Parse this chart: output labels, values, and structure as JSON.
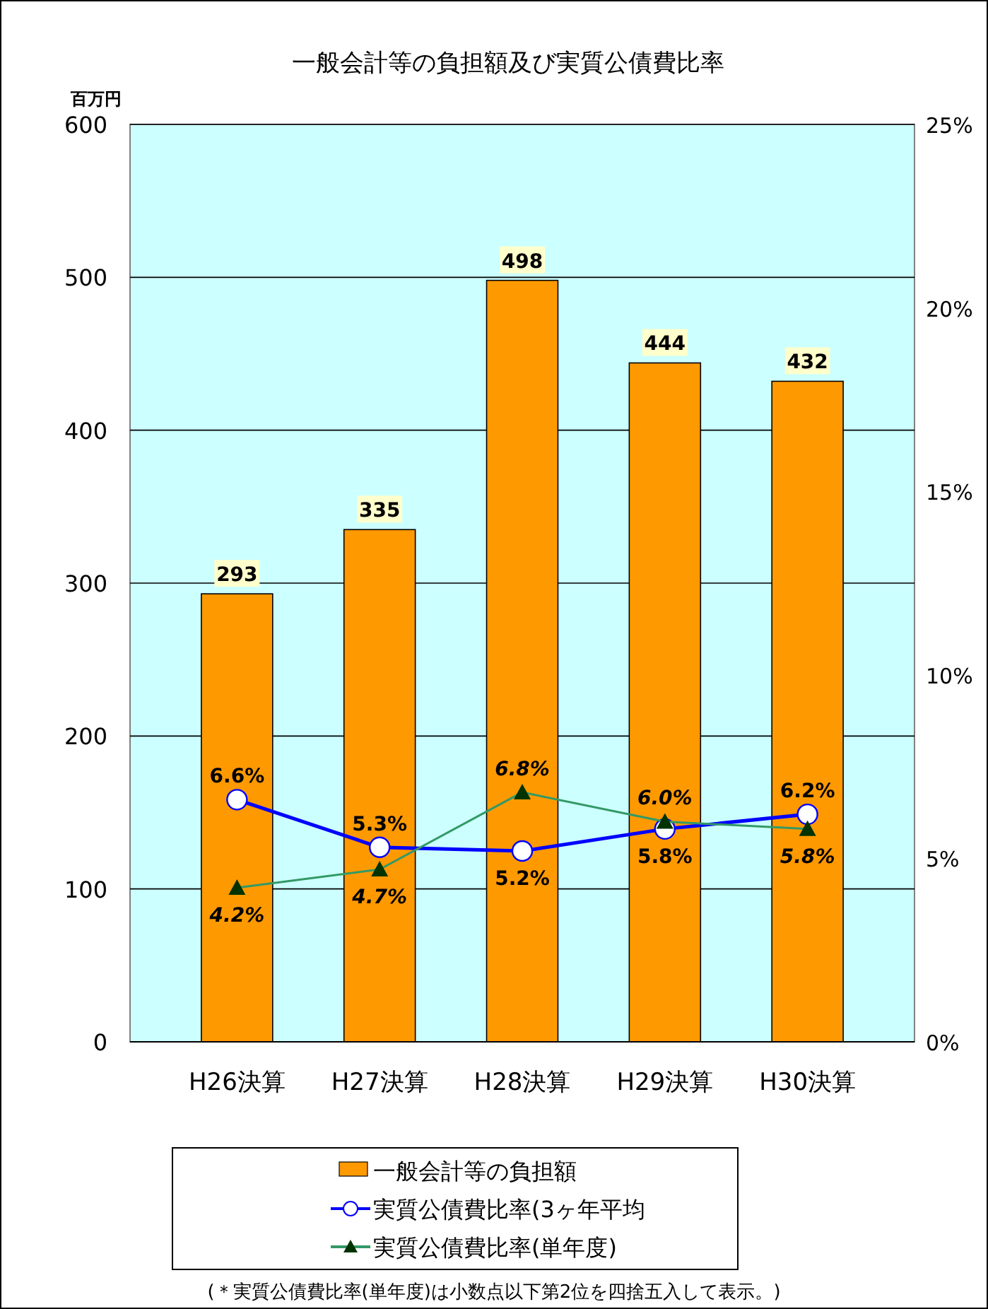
{
  "chart_data": {
    "type": "bar",
    "title": "一般会計等の負担額及び実質公債費比率",
    "ylabel": "百万円",
    "categories": [
      "H26決算",
      "H27決算",
      "H28決算",
      "H29決算",
      "H30決算"
    ],
    "series": [
      {
        "name": "一般会計等の負担額",
        "color": "#ff9900",
        "values": [
          293,
          335,
          498,
          444,
          432
        ],
        "value_labels": [
          "293",
          "335",
          "498",
          "444",
          "432"
        ]
      },
      {
        "name": "実質公債費比率(3ヶ年平均",
        "type": "line",
        "axis": "y2",
        "color": "#0000ff",
        "marker": "circle",
        "values": [
          6.6,
          5.3,
          5.2,
          5.8,
          6.2
        ],
        "value_labels": [
          "6.6%",
          "5.3%",
          "5.2%",
          "5.8%",
          "6.2%"
        ]
      },
      {
        "name": "実質公債費比率(単年度)",
        "type": "line",
        "axis": "y2",
        "color": "#339966",
        "marker": "triangle",
        "values": [
          4.2,
          4.7,
          6.8,
          6.0,
          5.8
        ],
        "value_labels": [
          "4.2%",
          "4.7%",
          "6.8%",
          "6.0%",
          "5.8%"
        ]
      }
    ],
    "ylim": [
      0,
      600
    ],
    "yticks": [
      0,
      100,
      200,
      300,
      400,
      500,
      600
    ],
    "y2lim": [
      0,
      25
    ],
    "y2ticks": [
      {
        "value": 0,
        "label": "0%"
      },
      {
        "value": 5,
        "label": "5%"
      },
      {
        "value": 10,
        "label": "10%"
      },
      {
        "value": 15,
        "label": "15%"
      },
      {
        "value": 20,
        "label": "20%"
      },
      {
        "value": 25,
        "label": "25%"
      }
    ],
    "grid": "y",
    "legend": "bottom",
    "annotations": [
      "(＊実質公債費比率(単年度)は小数点以下第2位を四捨五入して表示。)"
    ]
  }
}
